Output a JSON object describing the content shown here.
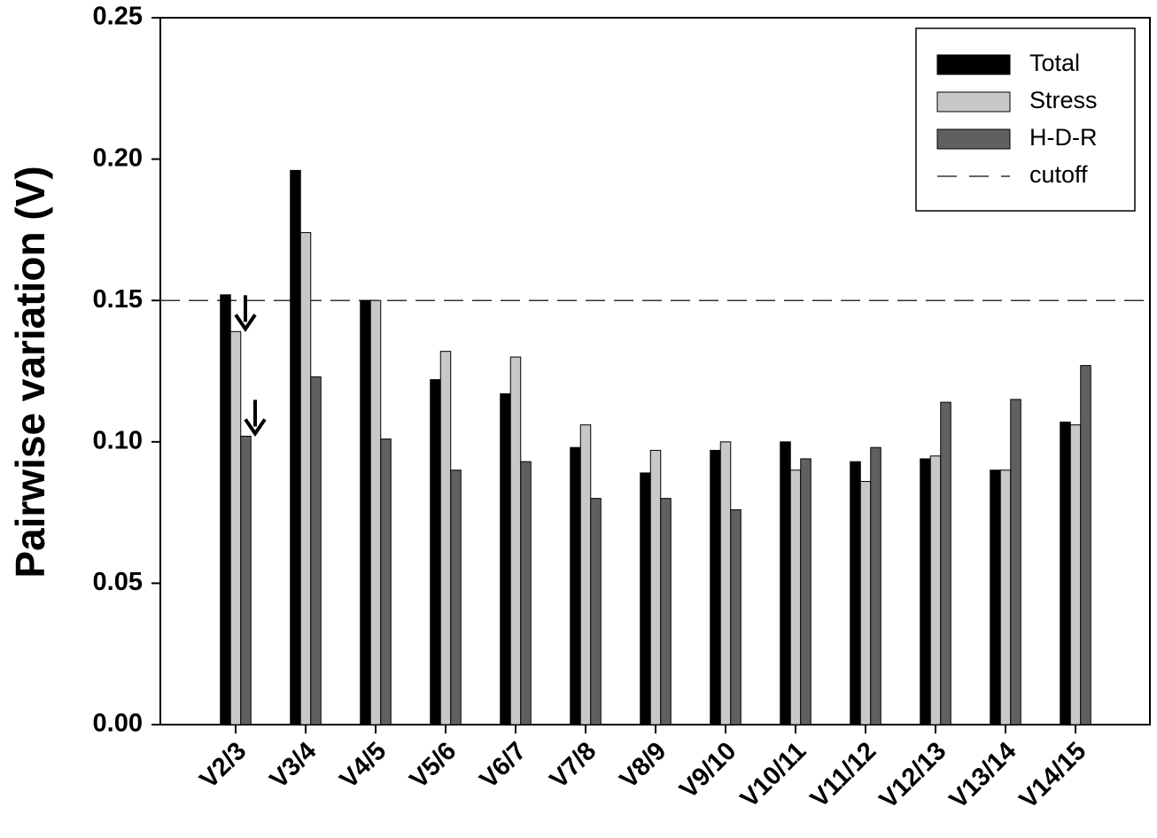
{
  "chart_data": {
    "type": "bar",
    "y_label": "Pairwise variation (V)",
    "categories": [
      "V2/3",
      "V3/4",
      "V4/5",
      "V5/6",
      "V6/7",
      "V7/8",
      "V8/9",
      "V9/10",
      "V10/11",
      "V11/12",
      "V12/13",
      "V13/14",
      "V14/15"
    ],
    "series": [
      {
        "name": "Total",
        "color": "#000000",
        "values": [
          0.152,
          0.196,
          0.15,
          0.122,
          0.117,
          0.098,
          0.089,
          0.097,
          0.1,
          0.093,
          0.094,
          0.09,
          0.107
        ]
      },
      {
        "name": "Stress",
        "color": "#c8c8c8",
        "values": [
          0.139,
          0.174,
          0.15,
          0.132,
          0.13,
          0.106,
          0.097,
          0.1,
          0.09,
          0.086,
          0.095,
          0.09,
          0.106
        ]
      },
      {
        "name": "H-D-R",
        "color": "#606060",
        "values": [
          0.102,
          0.123,
          0.101,
          0.09,
          0.093,
          0.08,
          0.08,
          0.076,
          0.094,
          0.098,
          0.114,
          0.115,
          0.127
        ]
      }
    ],
    "cutoff": {
      "name": "cutoff",
      "value": 0.15
    },
    "ylim": [
      0,
      0.25
    ],
    "yticks": [
      {
        "value": 0,
        "label": "0.00"
      },
      0.05,
      {
        "value": 0.1,
        "label": "0.10"
      },
      0.15,
      {
        "value": 0.2,
        "label": "0.20"
      },
      0.25
    ],
    "legend": "upper right"
  }
}
